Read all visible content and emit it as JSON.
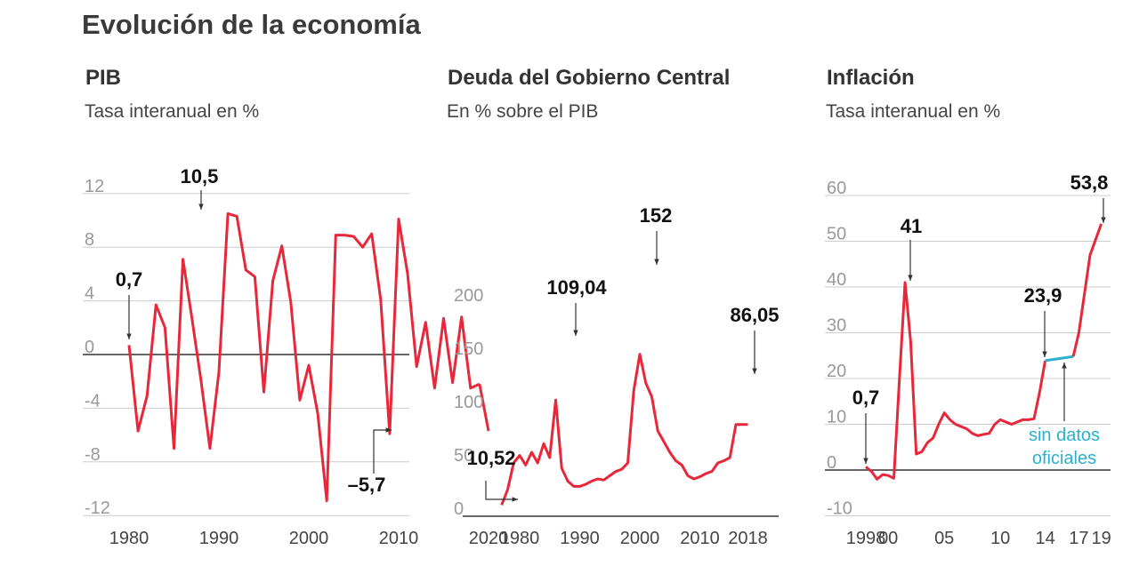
{
  "title": "Evolución de la economía",
  "colors": {
    "line": "#e8283a",
    "gap": "#2bb0cc",
    "grid": "#cccccc",
    "axis": "#333333",
    "arrow": "#333333"
  },
  "chart_data": [
    {
      "type": "line",
      "title": "PIB",
      "subtitle": "Tasa interanual en %",
      "ylim": [
        -12,
        12
      ],
      "yticks": [
        {
          "value": 12,
          "label": "12"
        },
        {
          "value": 8,
          "label": "8"
        },
        {
          "value": 4,
          "label": "4"
        },
        {
          "value": 0,
          "label": "0"
        },
        {
          "value": -4,
          "label": "-4"
        },
        {
          "value": -8,
          "label": "-8"
        },
        {
          "value": -12,
          "label": "-12"
        }
      ],
      "xlim": [
        1977,
        2021
      ],
      "xticks": [
        {
          "value": 1980,
          "label": "1980"
        },
        {
          "value": 1990,
          "label": "1990"
        },
        {
          "value": 2000,
          "label": "2000"
        },
        {
          "value": 2010,
          "label": "2010"
        },
        {
          "value": 2020,
          "label": "2020"
        }
      ],
      "grid": true,
      "series": [
        {
          "x": [
            1980,
            1981,
            1982,
            1983,
            1984,
            1985,
            1986,
            1987,
            1988,
            1989,
            1990,
            1991,
            1992,
            1993,
            1994,
            1995,
            1996,
            1997,
            1998,
            1999,
            2000,
            2001,
            2002,
            2003,
            2004,
            2005,
            2006,
            2007,
            2008,
            2009,
            2010,
            2011,
            2012,
            2013,
            2014,
            2015,
            2016,
            2017,
            2018,
            2019
          ],
          "y": [
            0.7,
            -5.7,
            -3.1,
            3.7,
            2.0,
            -7.0,
            7.1,
            2.7,
            -1.9,
            -7.0,
            -1.3,
            10.5,
            10.3,
            6.3,
            5.8,
            -2.8,
            5.5,
            8.1,
            3.9,
            -3.4,
            -0.8,
            -4.4,
            -10.9,
            8.9,
            8.9,
            8.8,
            8.0,
            9.0,
            4.1,
            -5.9,
            10.1,
            6.0,
            -0.9,
            2.4,
            -2.5,
            2.7,
            -2.1,
            2.8,
            -2.5,
            -2.2
          ]
        }
      ],
      "extra_points": [
        {
          "x": 2020,
          "y": -5.7
        }
      ],
      "annotations": [
        {
          "label": "0,7",
          "x": 1980,
          "y": 0.7
        },
        {
          "label": "10,5",
          "x": 1991,
          "y": 10.5
        },
        {
          "label": "–5,7",
          "x": 2020,
          "y": -5.7
        }
      ]
    },
    {
      "type": "line",
      "title": "Deuda del Gobierno Central",
      "subtitle": "En % sobre el PIB",
      "ylim": [
        0,
        200
      ],
      "yticks": [
        {
          "value": 200,
          "label": "200"
        },
        {
          "value": 150,
          "label": "150"
        },
        {
          "value": 100,
          "label": "100"
        },
        {
          "value": 50,
          "label": "50"
        },
        {
          "value": 0,
          "label": "0"
        }
      ],
      "xlim": [
        1976,
        2019
      ],
      "xticks": [
        {
          "value": 1980,
          "label": "1980"
        },
        {
          "value": 1990,
          "label": "1990"
        },
        {
          "value": 2000,
          "label": "2000"
        },
        {
          "value": 2010,
          "label": "2010"
        },
        {
          "value": 2018,
          "label": "2018"
        }
      ],
      "grid": false,
      "series": [
        {
          "x": [
            1977,
            1978,
            1979,
            1980,
            1981,
            1982,
            1983,
            1984,
            1985,
            1986,
            1987,
            1988,
            1989,
            1990,
            1991,
            1992,
            1993,
            1994,
            1995,
            1996,
            1997,
            1998,
            1999,
            2000,
            2001,
            2002,
            2003,
            2004,
            2005,
            2006,
            2007,
            2008,
            2009,
            2010,
            2011,
            2012,
            2013,
            2014,
            2015,
            2016,
            2017,
            2018
          ],
          "y": [
            10.52,
            25,
            50,
            57,
            48,
            60,
            50,
            68,
            55,
            109.04,
            45,
            33,
            28,
            28,
            30,
            33,
            35,
            34,
            38,
            42,
            44,
            50,
            118,
            152,
            125,
            112,
            80,
            70,
            60,
            52,
            48,
            38,
            35,
            37,
            40,
            42,
            50,
            52,
            55,
            86.05,
            86.05,
            86.05
          ]
        }
      ],
      "annotations": [
        {
          "label": "10,52",
          "x": 1977,
          "y": 10.52
        },
        {
          "label": "109,04",
          "x": 1986,
          "y": 109.04
        },
        {
          "label": "152",
          "x": 2000,
          "y": 152
        },
        {
          "label": "86,05",
          "x": 2016,
          "y": 86.05
        }
      ]
    },
    {
      "type": "line",
      "title": "Inflación",
      "subtitle": "Tasa interanual en %",
      "ylim": [
        -10,
        60
      ],
      "yticks": [
        {
          "value": 60,
          "label": "60"
        },
        {
          "value": 50,
          "label": "50"
        },
        {
          "value": 40,
          "label": "40"
        },
        {
          "value": 30,
          "label": "30"
        },
        {
          "value": 20,
          "label": "20"
        },
        {
          "value": 10,
          "label": "10"
        },
        {
          "value": 0,
          "label": "0"
        },
        {
          "value": -10,
          "label": "-10"
        }
      ],
      "xlim": [
        1997.5,
        2019.5
      ],
      "xticks": [
        {
          "value": 1998,
          "label": "1998"
        },
        {
          "value": 2000,
          "label": "00"
        },
        {
          "value": 2005,
          "label": "05"
        },
        {
          "value": 2010,
          "label": "10"
        },
        {
          "value": 2014,
          "label": "14"
        },
        {
          "value": 2017,
          "label": "17"
        },
        {
          "value": 2019,
          "label": "19"
        }
      ],
      "grid": true,
      "series": [
        {
          "name": "",
          "x": [
            1998,
            1998.5,
            1999,
            1999.5,
            2000,
            2000.5,
            2001,
            2001.5,
            2002,
            2002.5,
            2003,
            2003.5,
            2004,
            2004.5,
            2005,
            2005.5,
            2006,
            2006.5,
            2007,
            2007.5,
            2008,
            2008.5,
            2009,
            2009.5,
            2010,
            2010.5,
            2011,
            2011.5,
            2012,
            2012.5,
            2013,
            2013.5,
            2014
          ],
          "y": [
            0.7,
            -0.3,
            -2.0,
            -1.0,
            -1.2,
            -1.8,
            20,
            41,
            28,
            3.5,
            4,
            6,
            7,
            10,
            12.5,
            11,
            10,
            9.5,
            9,
            8,
            7.5,
            7.8,
            8,
            10,
            11,
            10.5,
            10,
            10.5,
            11,
            11,
            11.2,
            17,
            23.9
          ]
        },
        {
          "name": "",
          "x": [
            2014,
            2016.5
          ],
          "y": [
            23.9,
            24.8
          ],
          "gap": true
        },
        {
          "name": "",
          "x": [
            2016.5,
            2017,
            2018,
            2019
          ],
          "y": [
            24.8,
            30,
            47,
            53.8
          ]
        }
      ],
      "annotations": [
        {
          "label": "0,7",
          "x": 1998,
          "y": 0.7
        },
        {
          "label": "41",
          "x": 2001.5,
          "y": 41
        },
        {
          "label": "23,9",
          "x": 2014,
          "y": 23.9
        },
        {
          "label": "53,8",
          "x": 2019,
          "y": 53.8
        }
      ],
      "note": [
        "sin datos",
        "oficiales"
      ]
    }
  ]
}
